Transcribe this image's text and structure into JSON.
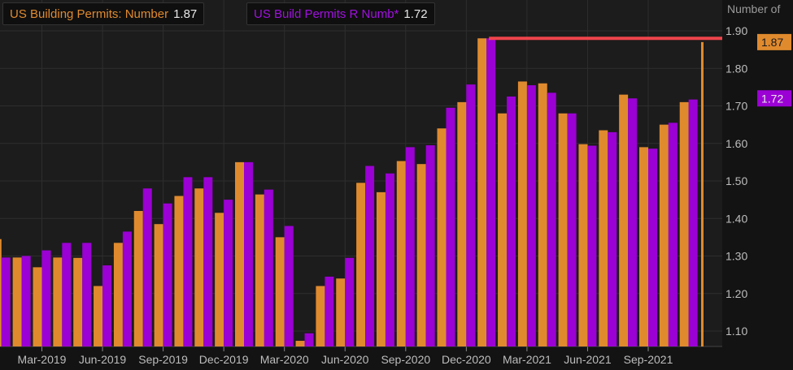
{
  "chart_data": {
    "type": "bar",
    "title": "",
    "xlabel": "",
    "ylabel": "Number of",
    "ylim": [
      1.06,
      1.95
    ],
    "y_ticks": [
      "1.10",
      "1.20",
      "1.30",
      "1.40",
      "1.50",
      "1.60",
      "1.70",
      "1.80",
      "1.90"
    ],
    "x_ticks": [
      "Mar-2019",
      "Jun-2019",
      "Sep-2019",
      "Dec-2019",
      "Mar-2020",
      "Jun-2020",
      "Sep-2020",
      "Dec-2020",
      "Mar-2021",
      "Jun-2021",
      "Sep-2021"
    ],
    "grid": true,
    "legend_position": "top-left",
    "categories": [
      "Jan-2019",
      "Feb-2019",
      "Mar-2019",
      "Apr-2019",
      "May-2019",
      "Jun-2019",
      "Jul-2019",
      "Aug-2019",
      "Sep-2019",
      "Oct-2019",
      "Nov-2019",
      "Dec-2019",
      "Jan-2020",
      "Feb-2020",
      "Mar-2020",
      "Apr-2020",
      "May-2020",
      "Jun-2020",
      "Jul-2020",
      "Aug-2020",
      "Sep-2020",
      "Oct-2020",
      "Nov-2020",
      "Dec-2020",
      "Jan-2021",
      "Feb-2021",
      "Mar-2021",
      "Apr-2021",
      "May-2021",
      "Jun-2021",
      "Jul-2021",
      "Aug-2021",
      "Sep-2021",
      "Oct-2021",
      "Nov-2021",
      "Dec-2021"
    ],
    "series": [
      {
        "name": "US Building Permits: Number",
        "last": "1.87",
        "color": "#e08a2e",
        "values": [
          1.345,
          1.296,
          1.27,
          1.296,
          1.295,
          1.22,
          1.335,
          1.42,
          1.385,
          1.46,
          1.48,
          1.415,
          1.55,
          1.464,
          1.35,
          1.074,
          1.22,
          1.24,
          1.495,
          1.47,
          1.553,
          1.545,
          1.64,
          1.71,
          1.88,
          1.68,
          1.765,
          1.76,
          1.68,
          1.598,
          1.635,
          1.73,
          1.59,
          1.65,
          1.71,
          1.87
        ]
      },
      {
        "name": "US Build Permits R Numb*",
        "last": "1.72",
        "color": "#9b00d4",
        "values": [
          1.296,
          1.3,
          1.315,
          1.335,
          1.335,
          1.275,
          1.365,
          1.48,
          1.44,
          1.51,
          1.51,
          1.45,
          1.55,
          1.477,
          1.38,
          1.094,
          1.245,
          1.295,
          1.54,
          1.52,
          1.59,
          1.595,
          1.695,
          1.757,
          1.88,
          1.725,
          1.755,
          1.735,
          1.68,
          1.594,
          1.63,
          1.72,
          1.586,
          1.655,
          1.717,
          null
        ]
      }
    ],
    "annotations": [
      {
        "type": "hline",
        "y": 1.88,
        "from": "Jan-2021",
        "color": "#f0444c"
      }
    ]
  }
}
